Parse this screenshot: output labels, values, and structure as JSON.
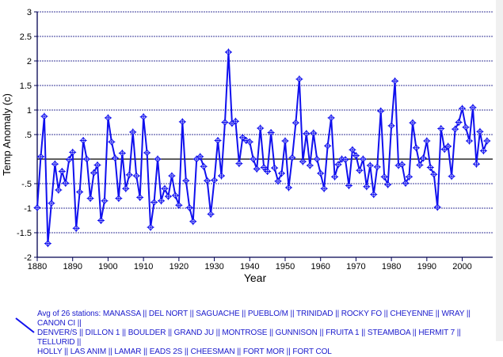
{
  "chart_data": {
    "type": "line",
    "title": "",
    "xlabel": "Year",
    "ylabel": "Temp Anomaly (c)",
    "xlim": [
      1880,
      2008.6
    ],
    "ylim": [
      -2,
      3
    ],
    "grid": true,
    "x_ticks": [
      1880,
      1890,
      1900,
      1910,
      1920,
      1930,
      1940,
      1950,
      1960,
      1970,
      1980,
      1990,
      2000
    ],
    "x_tick_labels": [
      "1880",
      "1890",
      "1900",
      "1910",
      "1920",
      "1930",
      "1940",
      "1950",
      "1960",
      "1970",
      "1980",
      "1990",
      "2000"
    ],
    "y_ticks": [
      3,
      2.5,
      2,
      1.5,
      1,
      0.5,
      -0.5,
      -1,
      -1.5,
      -2
    ],
    "y_tick_labels": [
      "3",
      "2.5",
      "2",
      "1.5",
      "1",
      ".5",
      "-.5",
      "-1",
      "-1.5",
      "-2"
    ],
    "line_color": "#1010ee",
    "grid_color": "#3a3a9a",
    "legend_placement": "bottom",
    "series": [
      {
        "name": "Avg of 26 stations",
        "x_start": 1880,
        "values": [
          -0.99,
          0.05,
          0.87,
          -1.72,
          -0.9,
          -0.1,
          -0.63,
          -0.25,
          -0.49,
          -0.01,
          0.14,
          -1.41,
          -0.67,
          0.38,
          0.0,
          -0.8,
          -0.28,
          -0.12,
          -1.25,
          -0.85,
          0.84,
          0.35,
          0.02,
          -0.8,
          0.12,
          -0.6,
          -0.32,
          0.55,
          -0.34,
          -0.78,
          0.86,
          0.13,
          -1.39,
          -0.88,
          0.0,
          -0.85,
          -0.6,
          -0.76,
          -0.34,
          -0.74,
          -0.94,
          0.76,
          -0.44,
          -0.99,
          -1.27,
          0.0,
          0.05,
          -0.15,
          -0.44,
          -1.12,
          -0.43,
          0.38,
          -0.34,
          0.75,
          2.18,
          0.73,
          0.77,
          -0.09,
          0.44,
          0.38,
          0.35,
          0.0,
          -0.2,
          0.63,
          -0.17,
          -0.25,
          0.54,
          -0.18,
          -0.45,
          -0.29,
          0.37,
          -0.58,
          0.03,
          0.74,
          1.63,
          -0.05,
          0.52,
          -0.13,
          0.53,
          0.0,
          -0.29,
          -0.6,
          0.27,
          0.84,
          -0.36,
          -0.11,
          0.0,
          -0.01,
          -0.54,
          0.19,
          0.07,
          -0.23,
          0.0,
          -0.56,
          -0.13,
          -0.72,
          -0.16,
          0.98,
          -0.36,
          -0.52,
          0.68,
          1.59,
          -0.13,
          -0.11,
          -0.49,
          -0.36,
          0.74,
          0.23,
          -0.12,
          0.02,
          0.37,
          -0.17,
          -0.31,
          -0.98,
          0.62,
          0.2,
          0.26,
          -0.35,
          0.61,
          0.75,
          1.03,
          0.65,
          0.37,
          1.05,
          -0.1,
          0.56,
          0.17,
          0.37
        ]
      }
    ],
    "legend": {
      "lines": [
        "Avg of 26 stations: MANASSA || DEL NORT || SAGUACHE || PUEBLO/M || TRINIDAD || ROCKY FO || CHEYENNE || WRAY || CANON CI ||",
        "DENVER/S || DILLON 1 || BOULDER || GRAND JU || MONTROSE || GUNNISON || FRUITA 1 || STEAMBOA || HERMIT 7 || TELLURID ||",
        "HOLLY || LAS ANIM || LAMAR || EADS 2S || CHEESMAN || FORT MOR || FORT COL"
      ]
    }
  }
}
